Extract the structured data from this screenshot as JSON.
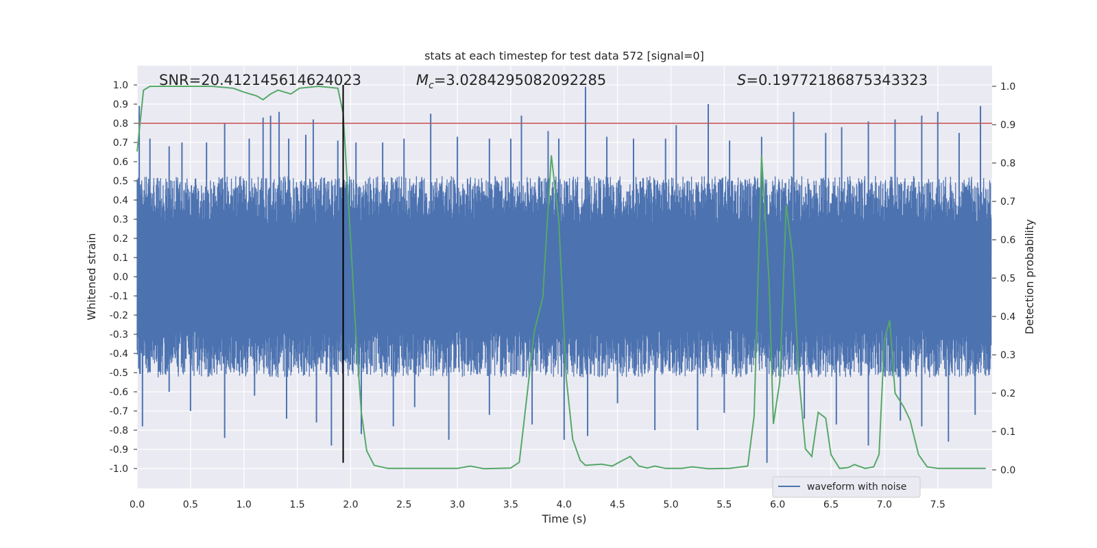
{
  "chart_data": {
    "type": "line",
    "title": "stats at each timestep for test data 572 [signal=0]",
    "xlabel": "Time (s)",
    "ylabel_left": "Whitened strain",
    "ylabel_right": "Detection probability",
    "xlim": [
      0.0,
      8.0
    ],
    "ylim_left": [
      -1.1,
      1.1
    ],
    "ylim_right": [
      -0.05,
      1.05
    ],
    "x_ticks": [
      "0.0",
      "0.5",
      "1.0",
      "1.5",
      "2.0",
      "2.5",
      "3.0",
      "3.5",
      "4.0",
      "4.5",
      "5.0",
      "5.5",
      "6.0",
      "6.5",
      "7.0",
      "7.5"
    ],
    "y_ticks_left": [
      "1.0",
      "0.9",
      "0.8",
      "0.7",
      "0.6",
      "0.5",
      "0.4",
      "0.3",
      "0.2",
      "0.1",
      "0.0",
      "-0.1",
      "-0.2",
      "-0.3",
      "-0.4",
      "-0.5",
      "-0.6",
      "-0.7",
      "-0.8",
      "-0.9",
      "-1.0"
    ],
    "y_ticks_right": [
      "1.0",
      "0.9",
      "0.8",
      "0.7",
      "0.6",
      "0.5",
      "0.4",
      "0.3",
      "0.2",
      "0.1",
      "0.0"
    ],
    "grid": true,
    "legend_placement": "lower-right",
    "annotations": {
      "snr": "SNR=20.412145614624023",
      "mc_symbol": "M",
      "mc_sub": "c",
      "mc_value": "=3.0284295082092285",
      "s_symbol": "S",
      "s_value": "=0.19772186875343323"
    },
    "threshold_line": {
      "y": 0.8,
      "color": "#c44e52"
    },
    "vertical_marker": {
      "x": 1.93,
      "y_range": [
        -0.97,
        1.0
      ],
      "color": "#000000"
    },
    "series": [
      {
        "name": "waveform with noise",
        "color": "#4c72b0",
        "axis": "left",
        "envelope_upper_typical": 0.5,
        "envelope_lower_typical": -0.5,
        "peaks": [
          [
            0.02,
            0.89
          ],
          [
            0.12,
            0.72
          ],
          [
            0.3,
            0.68
          ],
          [
            0.42,
            0.7
          ],
          [
            0.65,
            0.7
          ],
          [
            0.82,
            0.8
          ],
          [
            1.05,
            0.72
          ],
          [
            1.18,
            0.83
          ],
          [
            1.25,
            0.84
          ],
          [
            1.33,
            0.86
          ],
          [
            1.42,
            0.72
          ],
          [
            1.58,
            0.74
          ],
          [
            1.65,
            0.82
          ],
          [
            1.88,
            0.71
          ],
          [
            2.05,
            0.7
          ],
          [
            2.3,
            0.7
          ],
          [
            2.5,
            0.72
          ],
          [
            2.75,
            0.85
          ],
          [
            3.0,
            0.73
          ],
          [
            3.3,
            0.72
          ],
          [
            3.5,
            0.72
          ],
          [
            3.6,
            0.84
          ],
          [
            3.85,
            0.76
          ],
          [
            3.95,
            0.72
          ],
          [
            4.2,
            0.99
          ],
          [
            4.4,
            0.73
          ],
          [
            4.65,
            0.72
          ],
          [
            4.95,
            0.72
          ],
          [
            5.05,
            0.79
          ],
          [
            5.35,
            0.9
          ],
          [
            5.55,
            0.71
          ],
          [
            5.85,
            0.73
          ],
          [
            6.15,
            0.86
          ],
          [
            6.45,
            0.75
          ],
          [
            6.6,
            0.78
          ],
          [
            6.85,
            0.81
          ],
          [
            7.1,
            0.82
          ],
          [
            7.35,
            0.84
          ],
          [
            7.5,
            0.86
          ],
          [
            7.7,
            0.75
          ],
          [
            7.9,
            0.89
          ]
        ],
        "troughs": [
          [
            0.05,
            -0.78
          ],
          [
            0.3,
            -0.6
          ],
          [
            0.5,
            -0.7
          ],
          [
            0.82,
            -0.84
          ],
          [
            1.1,
            -0.62
          ],
          [
            1.4,
            -0.74
          ],
          [
            1.68,
            -0.76
          ],
          [
            1.82,
            -0.88
          ],
          [
            2.1,
            -0.82
          ],
          [
            2.4,
            -0.78
          ],
          [
            2.6,
            -0.68
          ],
          [
            2.92,
            -0.85
          ],
          [
            3.3,
            -0.72
          ],
          [
            3.7,
            -0.77
          ],
          [
            4.0,
            -0.85
          ],
          [
            4.22,
            -0.83
          ],
          [
            4.5,
            -0.66
          ],
          [
            4.85,
            -0.8
          ],
          [
            5.25,
            -0.8
          ],
          [
            5.5,
            -0.71
          ],
          [
            5.9,
            -0.97
          ],
          [
            6.25,
            -0.74
          ],
          [
            6.55,
            -0.77
          ],
          [
            6.85,
            -0.88
          ],
          [
            7.15,
            -0.75
          ],
          [
            7.35,
            -0.78
          ],
          [
            7.6,
            -0.86
          ],
          [
            7.85,
            -0.72
          ]
        ]
      },
      {
        "name": "detection probability",
        "color": "#55a868",
        "axis": "right",
        "points": [
          [
            0.0,
            0.83
          ],
          [
            0.06,
            0.99
          ],
          [
            0.12,
            1.0
          ],
          [
            0.3,
            1.0
          ],
          [
            0.5,
            1.0
          ],
          [
            0.7,
            1.0
          ],
          [
            0.9,
            0.995
          ],
          [
            1.0,
            0.985
          ],
          [
            1.12,
            0.975
          ],
          [
            1.18,
            0.965
          ],
          [
            1.25,
            0.98
          ],
          [
            1.32,
            0.99
          ],
          [
            1.44,
            0.98
          ],
          [
            1.52,
            0.995
          ],
          [
            1.7,
            1.0
          ],
          [
            1.88,
            0.995
          ],
          [
            1.93,
            0.93
          ],
          [
            2.0,
            0.6
          ],
          [
            2.05,
            0.35
          ],
          [
            2.1,
            0.15
          ],
          [
            2.15,
            0.05
          ],
          [
            2.22,
            0.012
          ],
          [
            2.35,
            0.004
          ],
          [
            2.6,
            0.004
          ],
          [
            3.0,
            0.004
          ],
          [
            3.12,
            0.01
          ],
          [
            3.25,
            0.003
          ],
          [
            3.5,
            0.005
          ],
          [
            3.58,
            0.02
          ],
          [
            3.63,
            0.14
          ],
          [
            3.72,
            0.36
          ],
          [
            3.8,
            0.45
          ],
          [
            3.88,
            0.82
          ],
          [
            3.95,
            0.65
          ],
          [
            4.02,
            0.24
          ],
          [
            4.08,
            0.08
          ],
          [
            4.15,
            0.025
          ],
          [
            4.2,
            0.012
          ],
          [
            4.35,
            0.015
          ],
          [
            4.45,
            0.01
          ],
          [
            4.55,
            0.025
          ],
          [
            4.62,
            0.035
          ],
          [
            4.7,
            0.01
          ],
          [
            4.78,
            0.005
          ],
          [
            4.85,
            0.01
          ],
          [
            4.95,
            0.004
          ],
          [
            5.1,
            0.004
          ],
          [
            5.2,
            0.008
          ],
          [
            5.35,
            0.003
          ],
          [
            5.55,
            0.004
          ],
          [
            5.72,
            0.01
          ],
          [
            5.78,
            0.14
          ],
          [
            5.85,
            0.82
          ],
          [
            5.92,
            0.49
          ],
          [
            5.96,
            0.12
          ],
          [
            6.02,
            0.23
          ],
          [
            6.08,
            0.69
          ],
          [
            6.14,
            0.56
          ],
          [
            6.2,
            0.24
          ],
          [
            6.26,
            0.055
          ],
          [
            6.32,
            0.035
          ],
          [
            6.38,
            0.15
          ],
          [
            6.45,
            0.135
          ],
          [
            6.5,
            0.04
          ],
          [
            6.58,
            0.004
          ],
          [
            6.66,
            0.006
          ],
          [
            6.72,
            0.014
          ],
          [
            6.82,
            0.004
          ],
          [
            6.9,
            0.008
          ],
          [
            6.95,
            0.04
          ],
          [
            7.0,
            0.34
          ],
          [
            7.05,
            0.39
          ],
          [
            7.1,
            0.2
          ],
          [
            7.18,
            0.165
          ],
          [
            7.24,
            0.13
          ],
          [
            7.32,
            0.04
          ],
          [
            7.4,
            0.008
          ],
          [
            7.5,
            0.004
          ],
          [
            7.7,
            0.004
          ],
          [
            7.95,
            0.004
          ]
        ]
      }
    ]
  }
}
